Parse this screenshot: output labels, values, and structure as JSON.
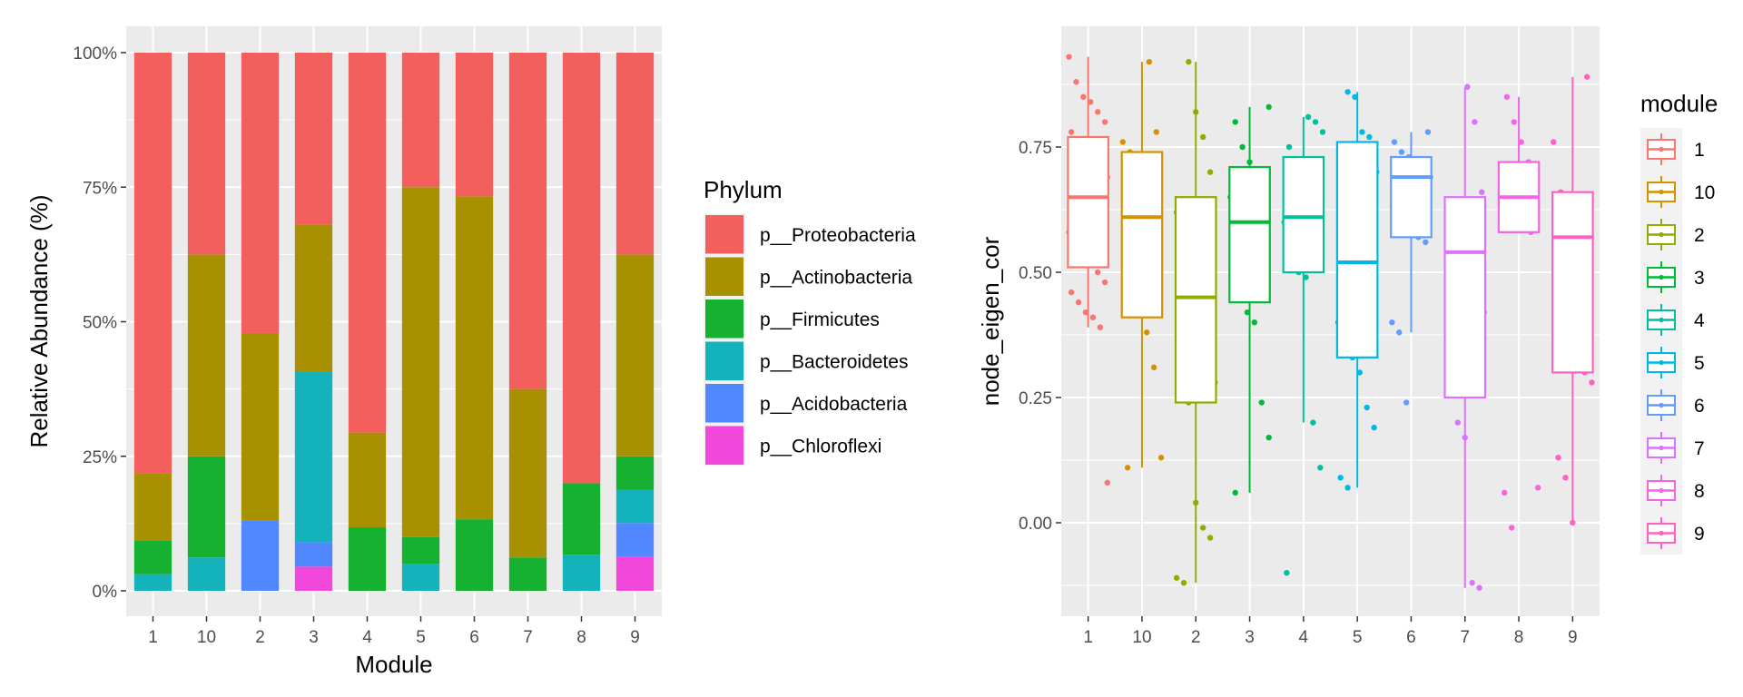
{
  "chart_data": [
    {
      "type": "bar",
      "stacked": true,
      "categories": [
        "1",
        "10",
        "2",
        "3",
        "4",
        "5",
        "6",
        "7",
        "8",
        "9"
      ],
      "xlabel": "Module",
      "ylabel": "Relative Abundance (%)",
      "ylim": [
        0,
        100
      ],
      "yticks": [
        0,
        25,
        50,
        75,
        100
      ],
      "ytick_labels": [
        "0%",
        "25%",
        "50%",
        "75%",
        "100%"
      ],
      "grid": true,
      "legend": {
        "title": "Phylum",
        "placement": "right"
      },
      "series": [
        {
          "name": "p__Chloroflexi",
          "color": "#F147DA",
          "values": [
            0,
            0,
            0,
            4.5,
            0,
            0,
            0,
            0,
            0,
            6.3
          ]
        },
        {
          "name": "p__Acidobacteria",
          "color": "#5288FF",
          "values": [
            0,
            0,
            13.1,
            4.5,
            0,
            0,
            0,
            0,
            0,
            6.3
          ]
        },
        {
          "name": "p__Bacteroidetes",
          "color": "#14B2BA",
          "values": [
            3.1,
            6.2,
            0,
            31.8,
            0,
            5,
            0,
            0,
            6.7,
            6.2
          ]
        },
        {
          "name": "p__Firmicutes",
          "color": "#17B131",
          "values": [
            6.3,
            18.8,
            0,
            0,
            11.8,
            5,
            13.3,
            6.2,
            13.3,
            6.2
          ]
        },
        {
          "name": "p__Actinobacteria",
          "color": "#A79101",
          "values": [
            12.5,
            37.5,
            34.8,
            27.3,
            17.6,
            65,
            60,
            31.3,
            0,
            37.5
          ]
        },
        {
          "name": "p__Proteobacteria",
          "color": "#F35F5C",
          "values": [
            78.1,
            37.5,
            52.1,
            31.9,
            70.6,
            25,
            26.7,
            62.5,
            80,
            37.5
          ]
        }
      ],
      "legend_order": [
        "p__Proteobacteria",
        "p__Actinobacteria",
        "p__Firmicutes",
        "p__Bacteroidetes",
        "p__Acidobacteria",
        "p__Chloroflexi"
      ]
    },
    {
      "type": "boxplot",
      "categories": [
        "1",
        "10",
        "2",
        "3",
        "4",
        "5",
        "6",
        "7",
        "8",
        "9"
      ],
      "xlabel": "",
      "ylabel": "node_eigen_cor",
      "ylim": [
        -0.18,
        0.95
      ],
      "yticks": [
        0,
        0.25,
        0.5,
        0.75
      ],
      "ytick_labels": [
        "0.00",
        "0.25",
        "0.50",
        "0.75"
      ],
      "grid": true,
      "legend": {
        "title": "module",
        "placement": "right"
      },
      "legend_order": [
        "1",
        "10",
        "2",
        "3",
        "4",
        "5",
        "6",
        "7",
        "8",
        "9"
      ],
      "groups": [
        {
          "name": "1",
          "color": "#F8766D",
          "q1": 0.51,
          "median": 0.65,
          "q3": 0.77,
          "whisker_low": 0.39,
          "whisker_high": 0.93,
          "points": [
            0.93,
            0.88,
            0.85,
            0.84,
            0.82,
            0.8,
            0.78,
            0.75,
            0.73,
            0.71,
            0.7,
            0.69,
            0.68,
            0.66,
            0.64,
            0.62,
            0.6,
            0.58,
            0.56,
            0.54,
            0.52,
            0.5,
            0.48,
            0.46,
            0.44,
            0.42,
            0.41,
            0.39,
            0.08
          ]
        },
        {
          "name": "10",
          "color": "#D39200",
          "q1": 0.41,
          "median": 0.61,
          "q3": 0.74,
          "whisker_low": 0.11,
          "whisker_high": 0.92,
          "points": [
            0.92,
            0.78,
            0.76,
            0.74,
            0.67,
            0.65,
            0.62,
            0.6,
            0.55,
            0.5,
            0.42,
            0.38,
            0.31,
            0.13,
            0.11
          ]
        },
        {
          "name": "2",
          "color": "#93AA00",
          "q1": 0.24,
          "median": 0.45,
          "q3": 0.65,
          "whisker_low": -0.12,
          "whisker_high": 0.92,
          "points": [
            0.92,
            0.82,
            0.77,
            0.7,
            0.62,
            0.58,
            0.56,
            0.52,
            0.48,
            0.45,
            0.44,
            0.42,
            0.38,
            0.35,
            0.32,
            0.28,
            0.25,
            0.24,
            0.04,
            -0.01,
            -0.03,
            -0.11,
            -0.12
          ]
        },
        {
          "name": "3",
          "color": "#00BA38",
          "q1": 0.44,
          "median": 0.6,
          "q3": 0.71,
          "whisker_low": 0.06,
          "whisker_high": 0.83,
          "points": [
            0.83,
            0.8,
            0.75,
            0.72,
            0.7,
            0.68,
            0.65,
            0.63,
            0.6,
            0.58,
            0.55,
            0.52,
            0.48,
            0.45,
            0.42,
            0.4,
            0.24,
            0.17,
            0.06
          ]
        },
        {
          "name": "4",
          "color": "#00C19F",
          "q1": 0.5,
          "median": 0.61,
          "q3": 0.73,
          "whisker_low": 0.2,
          "whisker_high": 0.81,
          "points": [
            0.81,
            0.8,
            0.78,
            0.75,
            0.7,
            0.67,
            0.64,
            0.62,
            0.6,
            0.58,
            0.5,
            0.49,
            0.2,
            0.11,
            -0.1
          ]
        },
        {
          "name": "5",
          "color": "#00B9E3",
          "q1": 0.33,
          "median": 0.52,
          "q3": 0.76,
          "whisker_low": 0.07,
          "whisker_high": 0.86,
          "points": [
            0.86,
            0.85,
            0.78,
            0.77,
            0.7,
            0.65,
            0.6,
            0.55,
            0.5,
            0.45,
            0.4,
            0.36,
            0.33,
            0.3,
            0.23,
            0.19,
            0.09,
            0.07
          ]
        },
        {
          "name": "6",
          "color": "#619CFF",
          "q1": 0.57,
          "median": 0.69,
          "q3": 0.73,
          "whisker_low": 0.38,
          "whisker_high": 0.78,
          "points": [
            0.78,
            0.76,
            0.74,
            0.73,
            0.72,
            0.7,
            0.69,
            0.66,
            0.62,
            0.6,
            0.57,
            0.56,
            0.4,
            0.38,
            0.24
          ]
        },
        {
          "name": "7",
          "color": "#DB72FB",
          "q1": 0.25,
          "median": 0.54,
          "q3": 0.65,
          "whisker_low": -0.13,
          "whisker_high": 0.87,
          "points": [
            0.87,
            0.8,
            0.66,
            0.57,
            0.55,
            0.53,
            0.52,
            0.46,
            0.42,
            0.27,
            0.2,
            0.17,
            -0.12,
            -0.13
          ]
        },
        {
          "name": "8",
          "color": "#F564E3",
          "q1": 0.58,
          "median": 0.65,
          "q3": 0.72,
          "whisker_low": 0.58,
          "whisker_high": 0.85,
          "points": [
            0.85,
            0.8,
            0.76,
            0.72,
            0.67,
            0.66,
            0.64,
            0.62,
            0.6,
            0.58,
            0.07,
            0.06,
            -0.01
          ]
        },
        {
          "name": "9",
          "color": "#FF61C3",
          "q1": 0.3,
          "median": 0.57,
          "q3": 0.66,
          "whisker_low": 0.0,
          "whisker_high": 0.89,
          "points": [
            0.89,
            0.76,
            0.66,
            0.62,
            0.61,
            0.6,
            0.58,
            0.55,
            0.52,
            0.48,
            0.44,
            0.3,
            0.28,
            0.13,
            0.09,
            0.0
          ]
        }
      ]
    }
  ]
}
